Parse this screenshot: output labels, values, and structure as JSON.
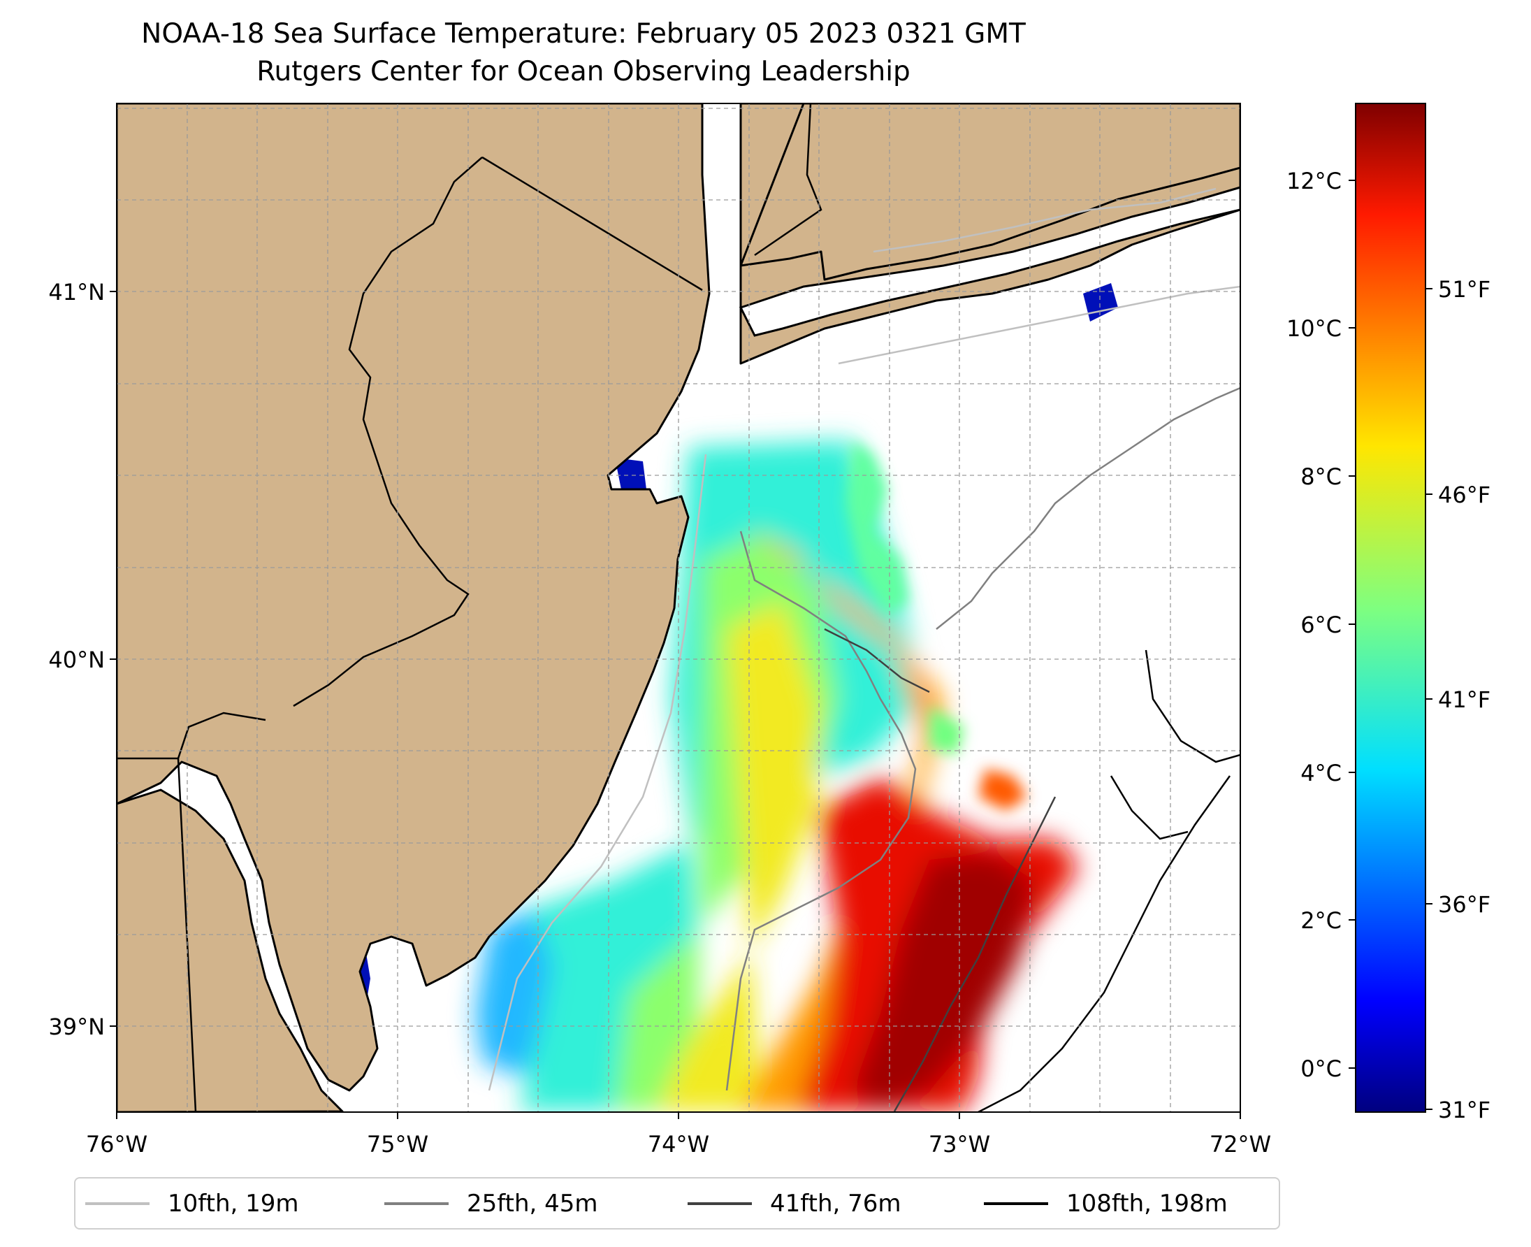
{
  "title": {
    "line1": "NOAA-18 Sea Surface Temperature: February 05 2023 0321 GMT",
    "line2": "Rutgers Center for Ocean Observing Leadership"
  },
  "map": {
    "land_color": "#d2b48c",
    "no_data_color": "#ffffff",
    "coast_color": "#000000",
    "grid_style": "dashed gray",
    "lon_ticks": [
      "76°W",
      "75°W",
      "74°W",
      "73°W",
      "72°W"
    ],
    "lat_ticks": [
      "41°N",
      "40°N",
      "39°N"
    ],
    "lon_range": [
      -76,
      -72
    ],
    "lat_range": [
      38.7,
      41.5
    ]
  },
  "colorbar": {
    "colormap": "jet",
    "celsius_ticks": [
      "12°C",
      "10°C",
      "8°C",
      "6°C",
      "4°C",
      "2°C",
      "0°C"
    ],
    "fahrenheit_ticks": [
      "51°F",
      "46°F",
      "41°F",
      "36°F",
      "31°F"
    ],
    "range_c": [
      -0.6,
      12.9
    ]
  },
  "legend": {
    "items": [
      {
        "label": "10fth, 19m",
        "color": "#c0c0c0"
      },
      {
        "label": "25fth, 45m",
        "color": "#808080"
      },
      {
        "label": "41fth, 76m",
        "color": "#404040"
      },
      {
        "label": "108fth, 198m",
        "color": "#000000"
      }
    ]
  }
}
